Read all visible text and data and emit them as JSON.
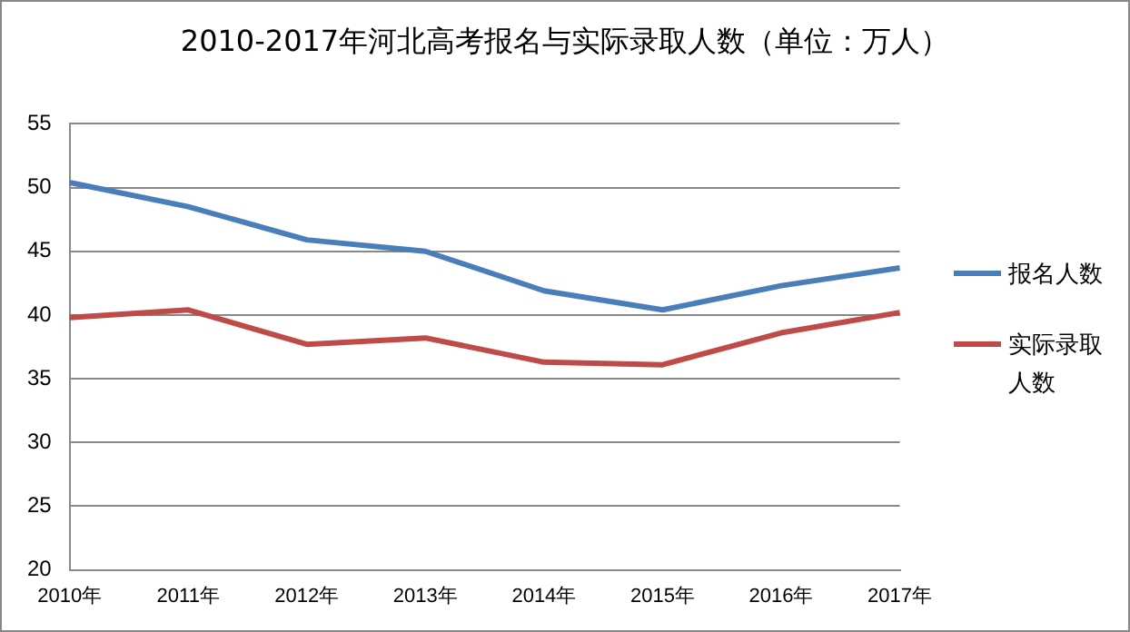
{
  "chart_data": {
    "type": "line",
    "title": "2010-2017年河北高考报名与实际录取人数（单位：万人）",
    "categories": [
      "2010年",
      "2011年",
      "2012年",
      "2013年",
      "2014年",
      "2015年",
      "2016年",
      "2017年"
    ],
    "series": [
      {
        "name": "报名人数",
        "color": "#4a7ebb",
        "values": [
          50.4,
          48.5,
          45.9,
          45.0,
          41.9,
          40.4,
          42.3,
          43.7
        ]
      },
      {
        "name": "实际录取人数",
        "color": "#be4b48",
        "values": [
          39.8,
          40.4,
          37.7,
          38.2,
          36.3,
          36.1,
          38.6,
          40.2
        ]
      }
    ],
    "ylim": [
      20,
      55
    ],
    "yticks": [
      20,
      25,
      30,
      35,
      40,
      45,
      50,
      55
    ],
    "grid": "y",
    "legend": "right",
    "marker": "none",
    "line_style": "solid"
  }
}
